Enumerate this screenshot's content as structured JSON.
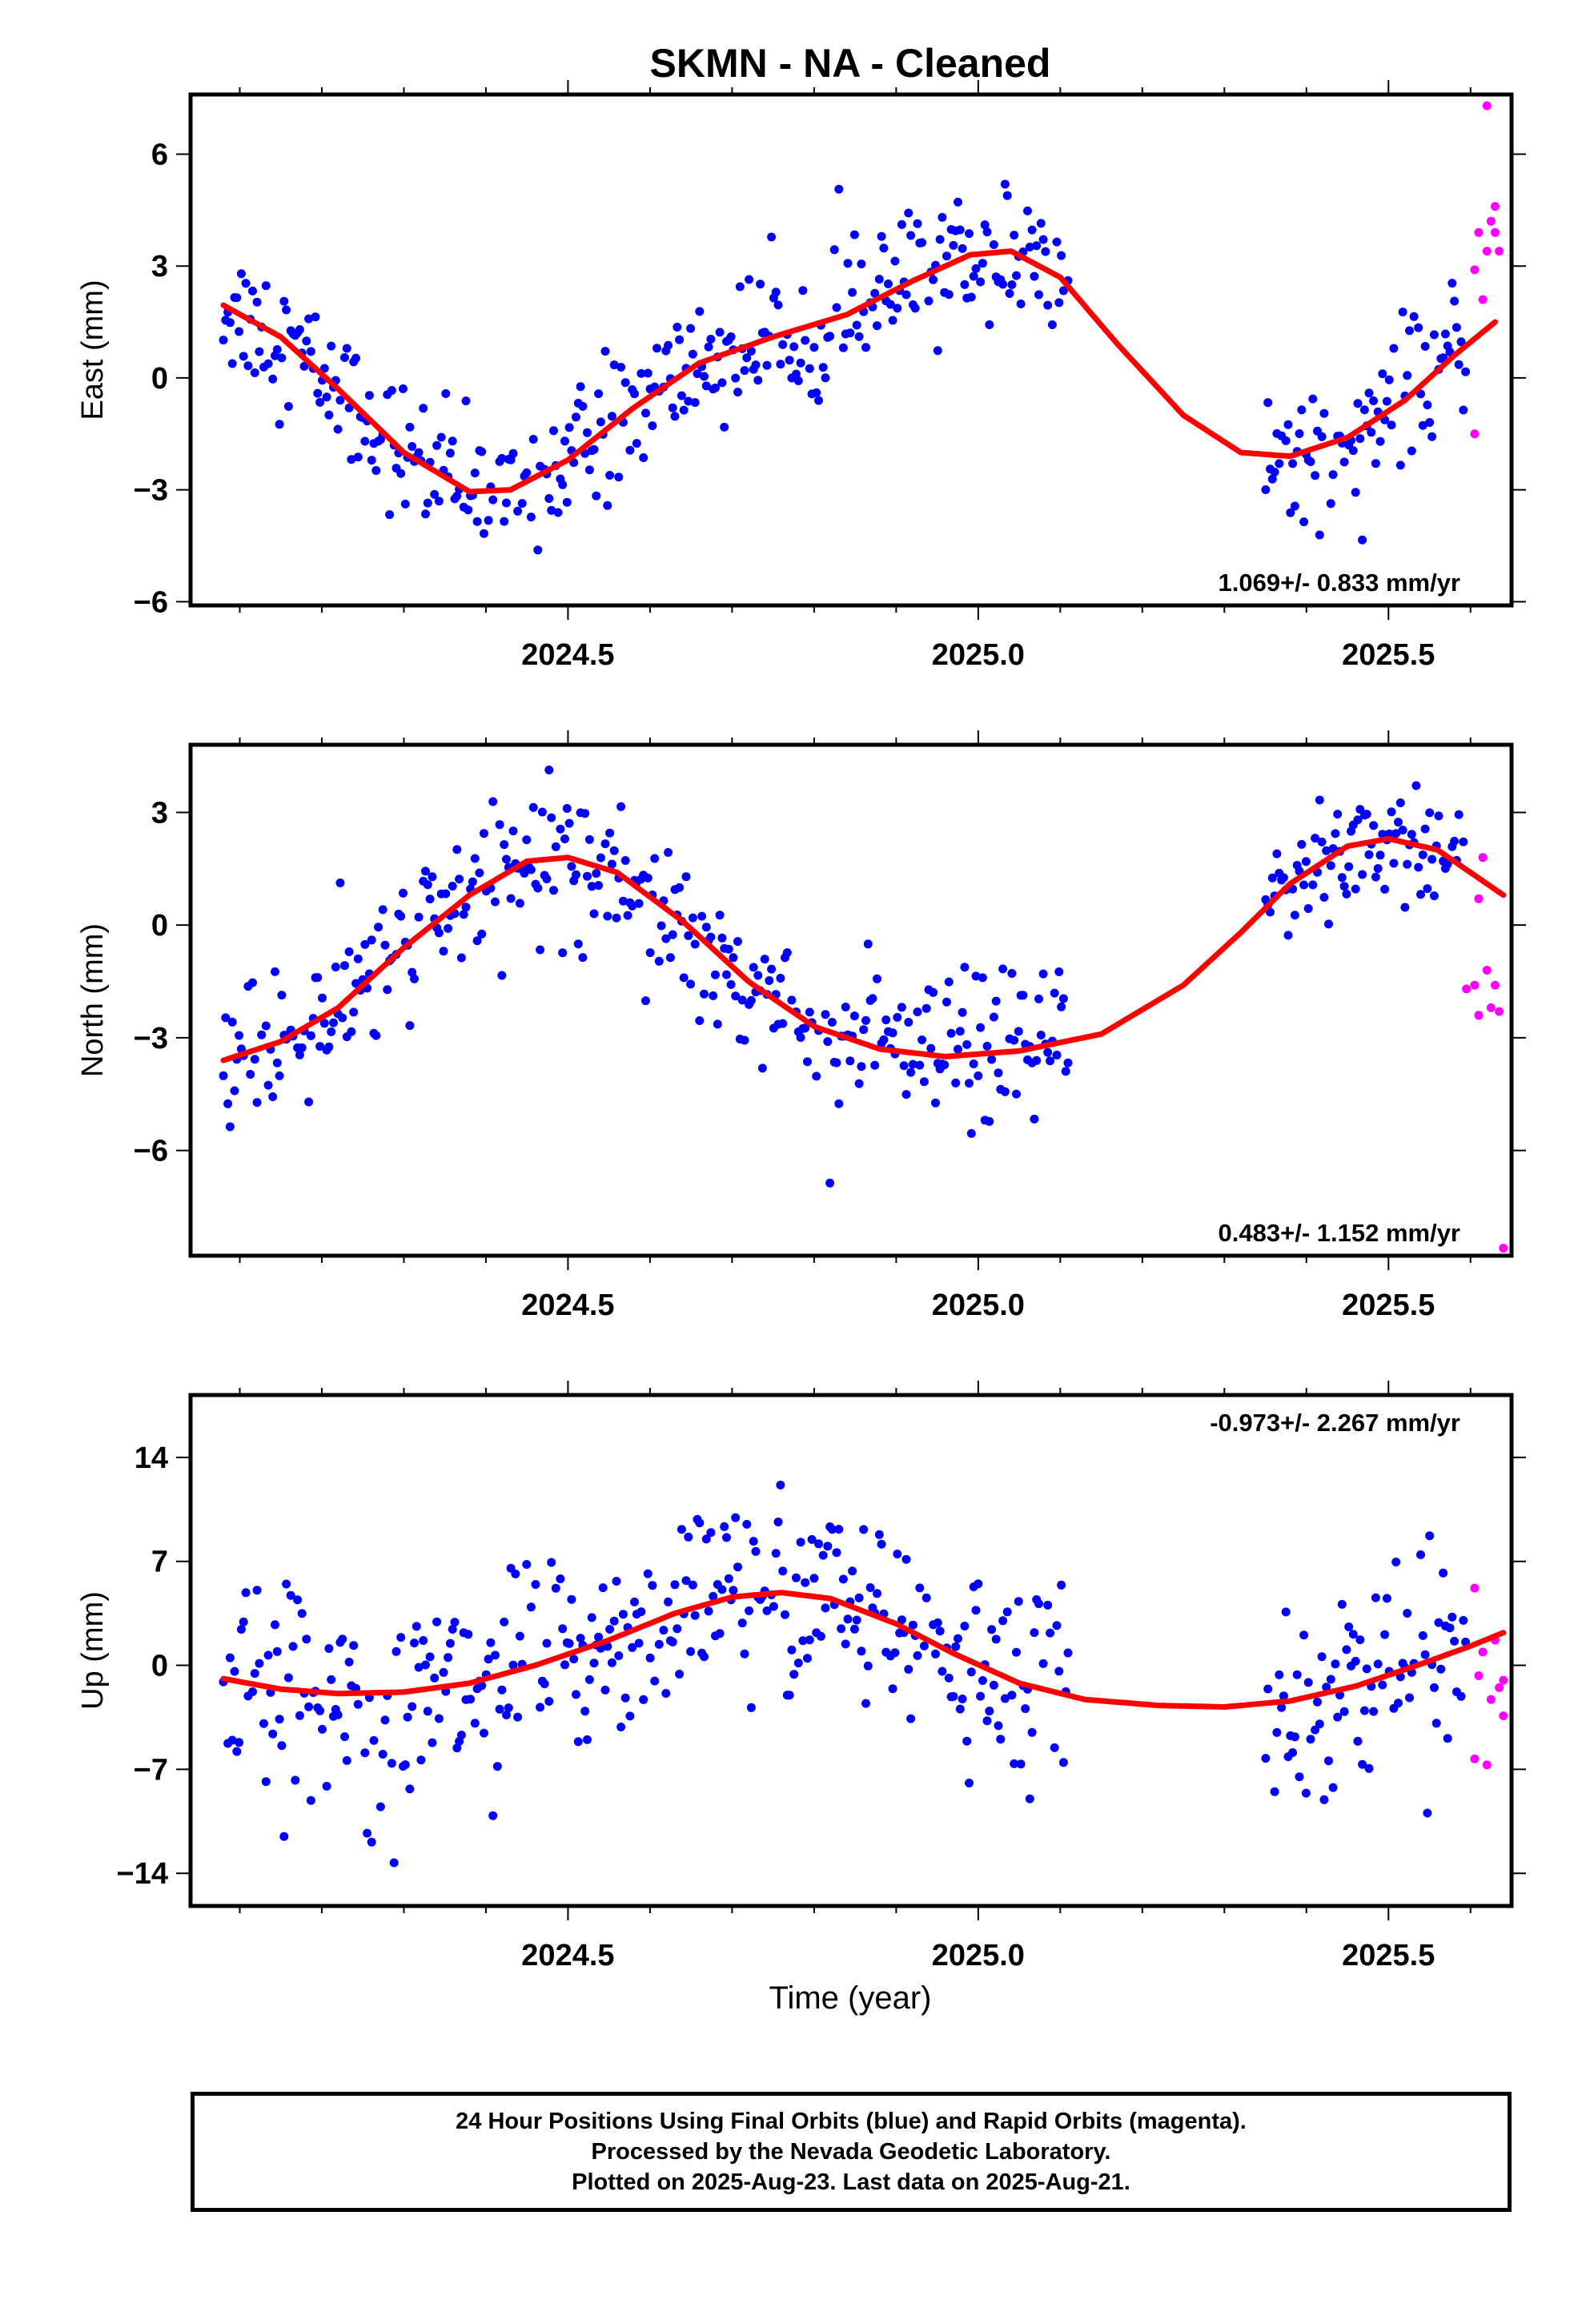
{
  "title": "SKMN  - NA - Cleaned",
  "colors": {
    "final": "#0000ff",
    "rapid": "#ff00ff",
    "fit": "#ff0000",
    "frame": "#000000"
  },
  "xlabel": "Time (year)",
  "footer": {
    "line1": "24 Hour Positions Using Final Orbits (blue) and Rapid Orbits (magenta).",
    "line2": "Processed by the Nevada Geodetic Laboratory.",
    "line3": "Plotted on 2025-Aug-23. Last data on 2025-Aug-21."
  },
  "chart_data": [
    {
      "type": "scatter",
      "ylabel": "East (mm)",
      "rate": "1.069+/- 0.833 mm/yr",
      "xlim": [
        2024.04,
        2025.65
      ],
      "ylim": [
        -6.1,
        7.6
      ],
      "yticks": [
        -6,
        -3,
        0,
        3,
        6
      ],
      "xticks": [
        "2024.5",
        "2025.0",
        "2025.5"
      ],
      "data_start": 2024.08,
      "data_end": 2025.595,
      "gap": [
        2025.11,
        2025.35
      ],
      "fit": [
        [
          2024.08,
          1.95
        ],
        [
          2024.15,
          1.1
        ],
        [
          2024.22,
          -0.3
        ],
        [
          2024.3,
          -2.0
        ],
        [
          2024.38,
          -3.05
        ],
        [
          2024.43,
          -3.0
        ],
        [
          2024.5,
          -2.2
        ],
        [
          2024.58,
          -0.8
        ],
        [
          2024.66,
          0.4
        ],
        [
          2024.75,
          1.1
        ],
        [
          2024.84,
          1.7
        ],
        [
          2024.92,
          2.6
        ],
        [
          2024.99,
          3.3
        ],
        [
          2025.04,
          3.4
        ],
        [
          2025.1,
          2.7
        ],
        [
          2025.17,
          0.9
        ],
        [
          2025.25,
          -1.0
        ],
        [
          2025.32,
          -2.0
        ],
        [
          2025.38,
          -2.1
        ],
        [
          2025.45,
          -1.6
        ],
        [
          2025.52,
          -0.6
        ],
        [
          2025.58,
          0.6
        ],
        [
          2025.63,
          1.5
        ]
      ],
      "noise": 0.9,
      "rapid": [
        [
          2025.605,
          -1.5
        ],
        [
          2025.605,
          2.9
        ],
        [
          2025.61,
          3.9
        ],
        [
          2025.615,
          2.1
        ],
        [
          2025.62,
          3.4
        ],
        [
          2025.62,
          7.3
        ],
        [
          2025.625,
          4.2
        ],
        [
          2025.63,
          3.9
        ],
        [
          2025.63,
          4.6
        ],
        [
          2025.635,
          3.4
        ]
      ]
    },
    {
      "type": "scatter",
      "ylabel": "North (mm)",
      "rate": "0.483+/- 1.152 mm/yr",
      "xlim": [
        2024.04,
        2025.65
      ],
      "ylim": [
        -8.8,
        4.8
      ],
      "yticks": [
        -6,
        -3,
        0,
        3
      ],
      "xticks": [
        "2024.5",
        "2025.0",
        "2025.5"
      ],
      "data_start": 2024.08,
      "data_end": 2025.595,
      "gap": [
        2025.11,
        2025.35
      ],
      "fit": [
        [
          2024.08,
          -3.6
        ],
        [
          2024.15,
          -3.1
        ],
        [
          2024.22,
          -2.2
        ],
        [
          2024.3,
          -0.6
        ],
        [
          2024.38,
          0.8
        ],
        [
          2024.45,
          1.7
        ],
        [
          2024.5,
          1.8
        ],
        [
          2024.56,
          1.4
        ],
        [
          2024.64,
          0.1
        ],
        [
          2024.72,
          -1.5
        ],
        [
          2024.8,
          -2.7
        ],
        [
          2024.88,
          -3.3
        ],
        [
          2024.96,
          -3.5
        ],
        [
          2025.05,
          -3.35
        ],
        [
          2025.15,
          -2.9
        ],
        [
          2025.25,
          -1.6
        ],
        [
          2025.32,
          -0.2
        ],
        [
          2025.38,
          1.1
        ],
        [
          2025.45,
          2.1
        ],
        [
          2025.5,
          2.3
        ],
        [
          2025.56,
          2.0
        ],
        [
          2025.6,
          1.4
        ],
        [
          2025.64,
          0.8
        ]
      ],
      "noise": 1.0,
      "rapid": [
        [
          2025.595,
          -1.7
        ],
        [
          2025.605,
          -1.6
        ],
        [
          2025.61,
          0.7
        ],
        [
          2025.61,
          -2.4
        ],
        [
          2025.615,
          1.8
        ],
        [
          2025.62,
          -1.2
        ],
        [
          2025.625,
          -2.2
        ],
        [
          2025.63,
          -1.6
        ],
        [
          2025.635,
          -2.3
        ],
        [
          2025.64,
          -8.6
        ]
      ]
    },
    {
      "type": "scatter",
      "ylabel": "Up (mm)",
      "rate": "-0.973+/- 2.267 mm/yr",
      "xlim": [
        2024.04,
        2025.65
      ],
      "ylim": [
        -16.2,
        18.2
      ],
      "yticks": [
        -14,
        -7,
        0,
        7,
        14
      ],
      "xticks": [
        "2024.5",
        "2025.0",
        "2025.5"
      ],
      "data_start": 2024.08,
      "data_end": 2025.595,
      "gap": [
        2025.11,
        2025.35
      ],
      "fit": [
        [
          2024.08,
          -0.9
        ],
        [
          2024.15,
          -1.6
        ],
        [
          2024.22,
          -1.9
        ],
        [
          2024.3,
          -1.8
        ],
        [
          2024.38,
          -1.2
        ],
        [
          2024.46,
          0.0
        ],
        [
          2024.55,
          1.7
        ],
        [
          2024.63,
          3.5
        ],
        [
          2024.7,
          4.6
        ],
        [
          2024.76,
          4.9
        ],
        [
          2024.82,
          4.5
        ],
        [
          2024.9,
          2.8
        ],
        [
          2024.97,
          0.8
        ],
        [
          2025.05,
          -1.2
        ],
        [
          2025.13,
          -2.3
        ],
        [
          2025.22,
          -2.7
        ],
        [
          2025.3,
          -2.8
        ],
        [
          2025.38,
          -2.4
        ],
        [
          2025.46,
          -1.4
        ],
        [
          2025.53,
          -0.1
        ],
        [
          2025.6,
          1.3
        ],
        [
          2025.64,
          2.2
        ]
      ],
      "noise": 3.4,
      "rapid": [
        [
          2025.605,
          5.2
        ],
        [
          2025.605,
          -6.3
        ],
        [
          2025.61,
          -0.7
        ],
        [
          2025.615,
          0.9
        ],
        [
          2025.62,
          -6.7
        ],
        [
          2025.625,
          -2.3
        ],
        [
          2025.63,
          1.7
        ],
        [
          2025.635,
          -1.5
        ],
        [
          2025.64,
          -3.4
        ],
        [
          2025.64,
          -1.0
        ]
      ]
    }
  ]
}
